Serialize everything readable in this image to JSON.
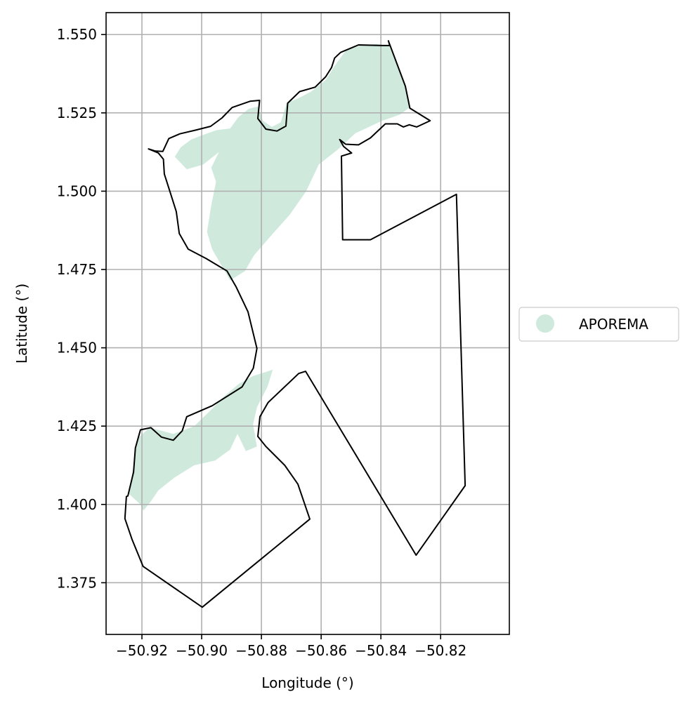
{
  "chart_data": {
    "type": "map",
    "xlabel": "Longitude (°)",
    "ylabel": "Latitude (°)",
    "xlim": [
      -50.932,
      -50.797
    ],
    "ylim": [
      1.3585,
      1.557
    ],
    "x_ticks": [
      -50.92,
      -50.9,
      -50.88,
      -50.86,
      -50.84,
      -50.82
    ],
    "x_tick_labels": [
      "−50.92",
      "−50.90",
      "−50.88",
      "−50.86",
      "−50.84",
      "−50.82"
    ],
    "y_ticks": [
      1.375,
      1.4,
      1.425,
      1.45,
      1.475,
      1.5,
      1.525,
      1.55
    ],
    "y_tick_labels": [
      "1.375",
      "1.400",
      "1.425",
      "1.450",
      "1.475",
      "1.500",
      "1.525",
      "1.550"
    ],
    "grid": true,
    "legend": {
      "placement": "right",
      "entries": [
        {
          "label": "APOREMA",
          "color": "#cfeadd"
        }
      ]
    },
    "colors": {
      "area_fill": "#cfeadd",
      "boundary": "#000000",
      "grid": "#b0b0b0"
    },
    "layers": [
      {
        "name": "APOREMA",
        "kind": "filled-area",
        "polygons": [
          [
            [
              -50.907,
              1.514
            ],
            [
              -50.9035,
              1.5165
            ],
            [
              -50.8995,
              1.518
            ],
            [
              -50.895,
              1.5195
            ],
            [
              -50.8905,
              1.52
            ],
            [
              -50.8878,
              1.5235
            ],
            [
              -50.8843,
              1.5263
            ],
            [
              -50.8812,
              1.527
            ],
            [
              -50.8795,
              1.5225
            ],
            [
              -50.8765,
              1.5205
            ],
            [
              -50.8735,
              1.522
            ],
            [
              -50.8715,
              1.5282
            ],
            [
              -50.868,
              1.5295
            ],
            [
              -50.8635,
              1.5317
            ],
            [
              -50.8585,
              1.5355
            ],
            [
              -50.8555,
              1.54
            ],
            [
              -50.8515,
              1.5452
            ],
            [
              -50.8465,
              1.5465
            ],
            [
              -50.8415,
              1.547
            ],
            [
              -50.8372,
              1.5465
            ],
            [
              -50.8352,
              1.5415
            ],
            [
              -50.8318,
              1.5335
            ],
            [
              -50.8303,
              1.5268
            ],
            [
              -50.8335,
              1.5245
            ],
            [
              -50.8395,
              1.5225
            ],
            [
              -50.8485,
              1.5185
            ],
            [
              -50.8542,
              1.5135
            ],
            [
              -50.8608,
              1.5085
            ],
            [
              -50.865,
              1.5
            ],
            [
              -50.8705,
              1.4925
            ],
            [
              -50.8775,
              1.485
            ],
            [
              -50.8825,
              1.4795
            ],
            [
              -50.8855,
              1.4745
            ],
            [
              -50.8905,
              1.4715
            ],
            [
              -50.8932,
              1.476
            ],
            [
              -50.8965,
              1.4815
            ],
            [
              -50.8982,
              1.487
            ],
            [
              -50.8968,
              1.4955
            ],
            [
              -50.8952,
              1.503
            ],
            [
              -50.8968,
              1.5075
            ],
            [
              -50.8942,
              1.5125
            ],
            [
              -50.8995,
              1.5085
            ],
            [
              -50.905,
              1.507
            ],
            [
              -50.909,
              1.511
            ]
          ],
          [
            [
              -50.9205,
              1.4
            ],
            [
              -50.9245,
              1.4035
            ],
            [
              -50.9225,
              1.414
            ],
            [
              -50.9215,
              1.421
            ],
            [
              -50.9175,
              1.4245
            ],
            [
              -50.9095,
              1.4225
            ],
            [
              -50.9025,
              1.425
            ],
            [
              -50.8965,
              1.4305
            ],
            [
              -50.8925,
              1.4345
            ],
            [
              -50.8875,
              1.4385
            ],
            [
              -50.8828,
              1.441
            ],
            [
              -50.8762,
              1.443
            ],
            [
              -50.878,
              1.4375
            ],
            [
              -50.8815,
              1.431
            ],
            [
              -50.8828,
              1.4255
            ],
            [
              -50.8815,
              1.4185
            ],
            [
              -50.8852,
              1.417
            ],
            [
              -50.888,
              1.4225
            ],
            [
              -50.8905,
              1.4175
            ],
            [
              -50.8955,
              1.414
            ],
            [
              -50.9025,
              1.4125
            ],
            [
              -50.9092,
              1.4085
            ],
            [
              -50.9145,
              1.4045
            ],
            [
              -50.917,
              1.401
            ],
            [
              -50.9195,
              1.398
            ]
          ]
        ]
      },
      {
        "name": "boundary",
        "kind": "outline",
        "polygons": [
          [
            [
              -50.9247,
              1.4027
            ],
            [
              -50.9228,
              1.4103
            ],
            [
              -50.9222,
              1.418
            ],
            [
              -50.9205,
              1.4238
            ],
            [
              -50.917,
              1.4245
            ],
            [
              -50.9135,
              1.4215
            ],
            [
              -50.9095,
              1.4205
            ],
            [
              -50.9065,
              1.4235
            ],
            [
              -50.905,
              1.428
            ],
            [
              -50.8965,
              1.4315
            ],
            [
              -50.8865,
              1.4375
            ],
            [
              -50.8827,
              1.4435
            ],
            [
              -50.8815,
              1.4498
            ],
            [
              -50.8845,
              1.4615
            ],
            [
              -50.8885,
              1.4695
            ],
            [
              -50.8915,
              1.4745
            ],
            [
              -50.8985,
              1.4785
            ],
            [
              -50.9045,
              1.4815
            ],
            [
              -50.9075,
              1.4865
            ],
            [
              -50.9085,
              1.4935
            ],
            [
              -50.9105,
              1.4995
            ],
            [
              -50.9125,
              1.5055
            ],
            [
              -50.9128,
              1.5102
            ],
            [
              -50.9145,
              1.5122
            ],
            [
              -50.9178,
              1.5135
            ],
            [
              -50.9155,
              1.5128
            ],
            [
              -50.913,
              1.5127
            ],
            [
              -50.911,
              1.5168
            ],
            [
              -50.9073,
              1.5183
            ],
            [
              -50.902,
              1.5195
            ],
            [
              -50.897,
              1.5207
            ],
            [
              -50.8932,
              1.5234
            ],
            [
              -50.8898,
              1.5267
            ],
            [
              -50.8838,
              1.5287
            ],
            [
              -50.8806,
              1.529
            ],
            [
              -50.8812,
              1.5232
            ],
            [
              -50.8785,
              1.5198
            ],
            [
              -50.8748,
              1.5192
            ],
            [
              -50.8718,
              1.5208
            ],
            [
              -50.8712,
              1.5281
            ],
            [
              -50.8672,
              1.5318
            ],
            [
              -50.862,
              1.5332
            ],
            [
              -50.8585,
              1.5365
            ],
            [
              -50.8565,
              1.5395
            ],
            [
              -50.8555,
              1.5425
            ],
            [
              -50.8535,
              1.5443
            ],
            [
              -50.8475,
              1.5467
            ],
            [
              -50.8395,
              1.5465
            ],
            [
              -50.837,
              1.5465
            ],
            [
              -50.8375,
              1.548
            ],
            [
              -50.8318,
              1.5335
            ],
            [
              -50.8303,
              1.5265
            ],
            [
              -50.8235,
              1.5225
            ],
            [
              -50.828,
              1.5205
            ],
            [
              -50.8305,
              1.5212
            ],
            [
              -50.8325,
              1.5205
            ],
            [
              -50.8345,
              1.5215
            ],
            [
              -50.8385,
              1.5215
            ],
            [
              -50.8435,
              1.517
            ],
            [
              -50.8475,
              1.5148
            ],
            [
              -50.8518,
              1.515
            ],
            [
              -50.8538,
              1.5165
            ],
            [
              -50.8525,
              1.5143
            ],
            [
              -50.8498,
              1.5122
            ],
            [
              -50.8532,
              1.5112
            ],
            [
              -50.8528,
              1.4845
            ],
            [
              -50.8435,
              1.4845
            ],
            [
              -50.8147,
              1.499
            ],
            [
              -50.8118,
              1.406
            ],
            [
              -50.8282,
              1.3838
            ],
            [
              -50.8652,
              1.4425
            ],
            [
              -50.8675,
              1.4418
            ],
            [
              -50.8778,
              1.4325
            ],
            [
              -50.8805,
              1.428
            ],
            [
              -50.8812,
              1.4217
            ],
            [
              -50.8785,
              1.4185
            ],
            [
              -50.8722,
              1.4125
            ],
            [
              -50.8678,
              1.4065
            ],
            [
              -50.8638,
              1.3953
            ],
            [
              -50.8998,
              1.3672
            ],
            [
              -50.9196,
              1.3802
            ],
            [
              -50.9233,
              1.3888
            ],
            [
              -50.9257,
              1.3955
            ],
            [
              -50.9252,
              1.4025
            ]
          ]
        ]
      }
    ]
  }
}
